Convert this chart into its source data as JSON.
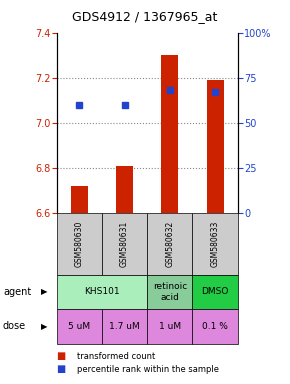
{
  "title": "GDS4912 / 1367965_at",
  "samples": [
    "GSM580630",
    "GSM580631",
    "GSM580632",
    "GSM580633"
  ],
  "bar_values": [
    6.72,
    6.81,
    7.3,
    7.19
  ],
  "percentile_values": [
    60,
    60,
    68,
    67
  ],
  "ylim_left": [
    6.6,
    7.4
  ],
  "ylim_right": [
    0,
    100
  ],
  "yticks_left": [
    6.6,
    6.8,
    7.0,
    7.2,
    7.4
  ],
  "yticks_right": [
    0,
    25,
    50,
    75,
    100
  ],
  "bar_color": "#cc2200",
  "dot_color": "#2244cc",
  "agent_groups": [
    {
      "cols": [
        0,
        1
      ],
      "label": "KHS101",
      "color": "#aaeebb"
    },
    {
      "cols": [
        2
      ],
      "label": "retinoic\nacid",
      "color": "#88cc99"
    },
    {
      "cols": [
        3
      ],
      "label": "DMSO",
      "color": "#22cc44"
    }
  ],
  "dose_labels": [
    "5 uM",
    "1.7 uM",
    "1 uM",
    "0.1 %"
  ],
  "dose_color": "#dd88dd",
  "sample_bg": "#cccccc",
  "legend_bar_label": "transformed count",
  "legend_dot_label": "percentile rank within the sample"
}
